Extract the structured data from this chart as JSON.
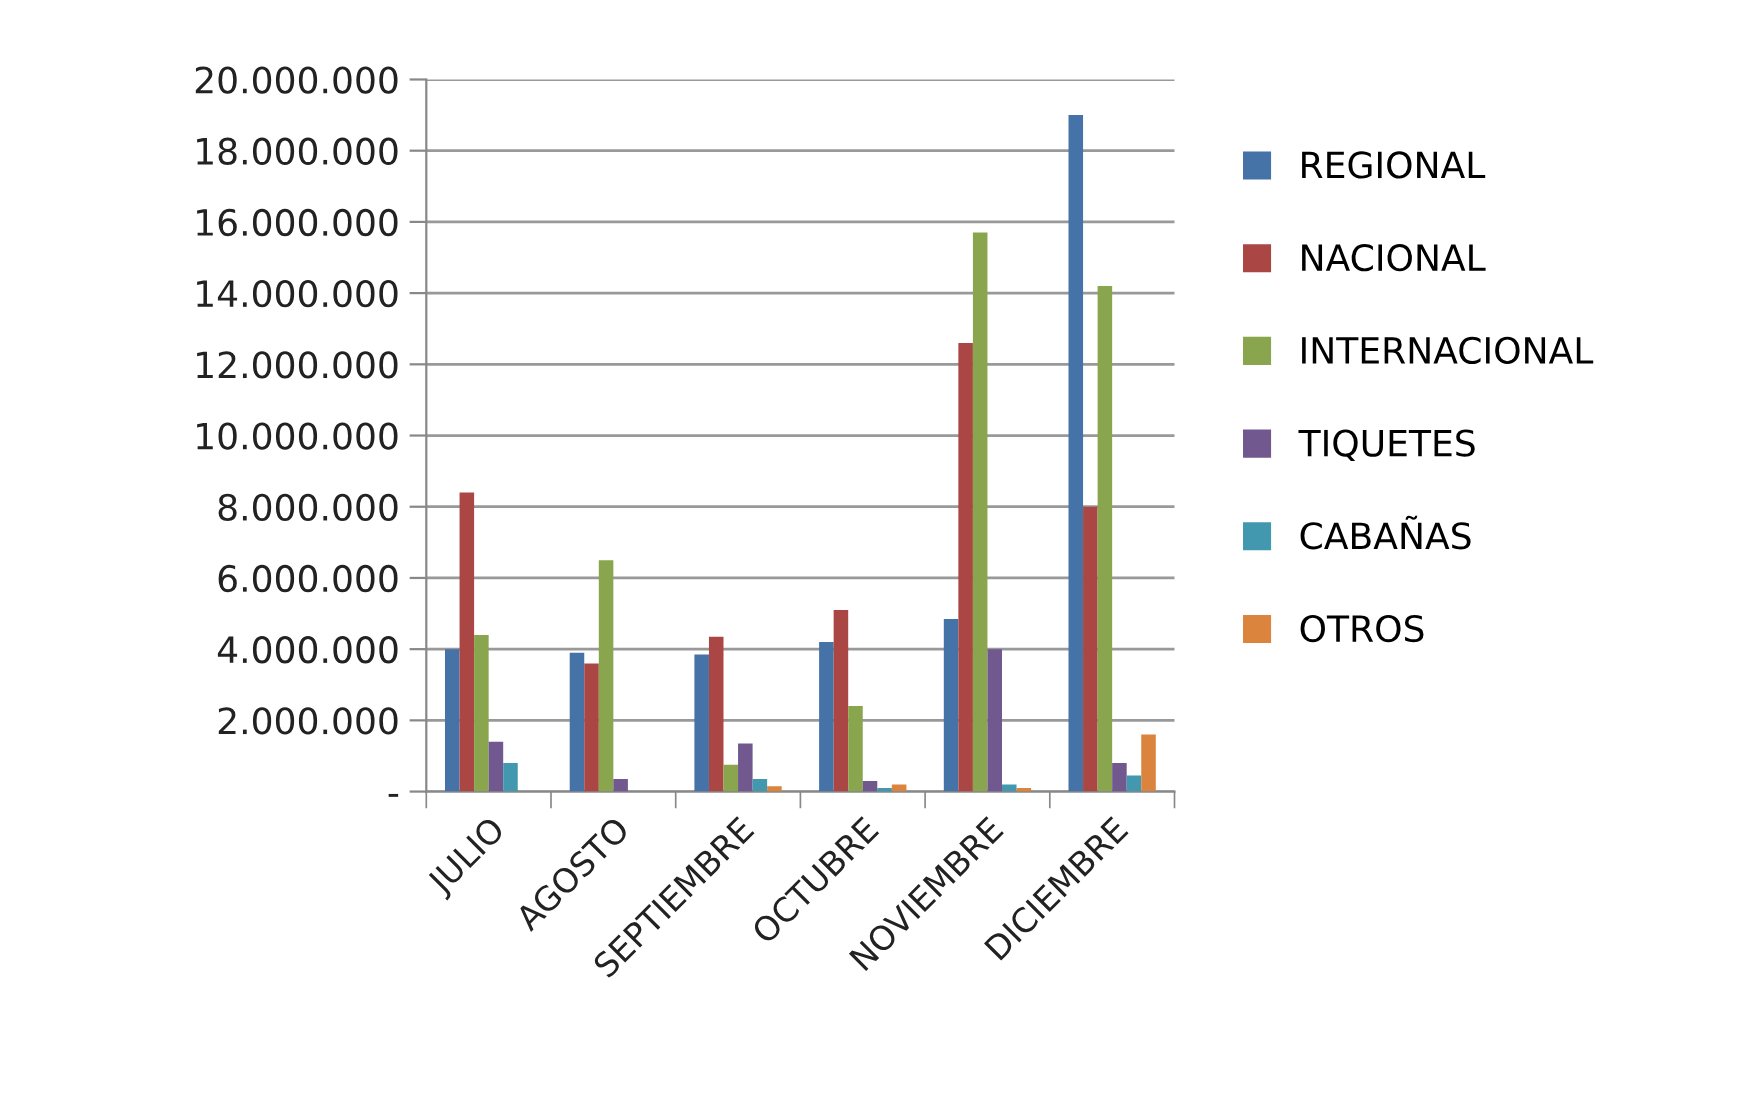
{
  "chart_data": {
    "type": "bar",
    "categories": [
      "JULIO",
      "AGOSTO",
      "SEPTIEMBRE",
      "OCTUBRE",
      "NOVIEMBRE",
      "DICIEMBRE"
    ],
    "series": [
      {
        "name": "REGIONAL",
        "color": "#4572a7",
        "values": [
          4000000,
          3900000,
          3850000,
          4200000,
          4850000,
          19000000
        ]
      },
      {
        "name": "NACIONAL",
        "color": "#aa4643",
        "values": [
          8400000,
          3600000,
          4350000,
          5100000,
          12600000,
          8000000
        ]
      },
      {
        "name": "INTERNACIONAL",
        "color": "#89a54e",
        "values": [
          4400000,
          6500000,
          750000,
          2400000,
          15700000,
          14200000
        ]
      },
      {
        "name": "TIQUETES",
        "color": "#71588f",
        "values": [
          1400000,
          350000,
          1350000,
          300000,
          4000000,
          800000
        ]
      },
      {
        "name": "CABAÑAS",
        "color": "#4198af",
        "values": [
          800000,
          0,
          350000,
          100000,
          200000,
          450000
        ]
      },
      {
        "name": "OTROS",
        "color": "#db843d",
        "values": [
          0,
          0,
          150000,
          200000,
          100000,
          1600000
        ]
      }
    ],
    "ylim": [
      0,
      20000000
    ],
    "yticks": [
      {
        "value": 0,
        "label": "-"
      },
      {
        "value": 2000000,
        "label": "2.000.000"
      },
      {
        "value": 4000000,
        "label": "4.000.000"
      },
      {
        "value": 6000000,
        "label": "6.000.000"
      },
      {
        "value": 8000000,
        "label": "8.000.000"
      },
      {
        "value": 10000000,
        "label": "10.000.000"
      },
      {
        "value": 12000000,
        "label": "12.000.000"
      },
      {
        "value": 14000000,
        "label": "14.000.000"
      },
      {
        "value": 16000000,
        "label": "16.000.000"
      },
      {
        "value": 18000000,
        "label": "18.000.000"
      },
      {
        "value": 20000000,
        "label": "20.000.000"
      }
    ],
    "grid": "y",
    "legend": "right"
  }
}
